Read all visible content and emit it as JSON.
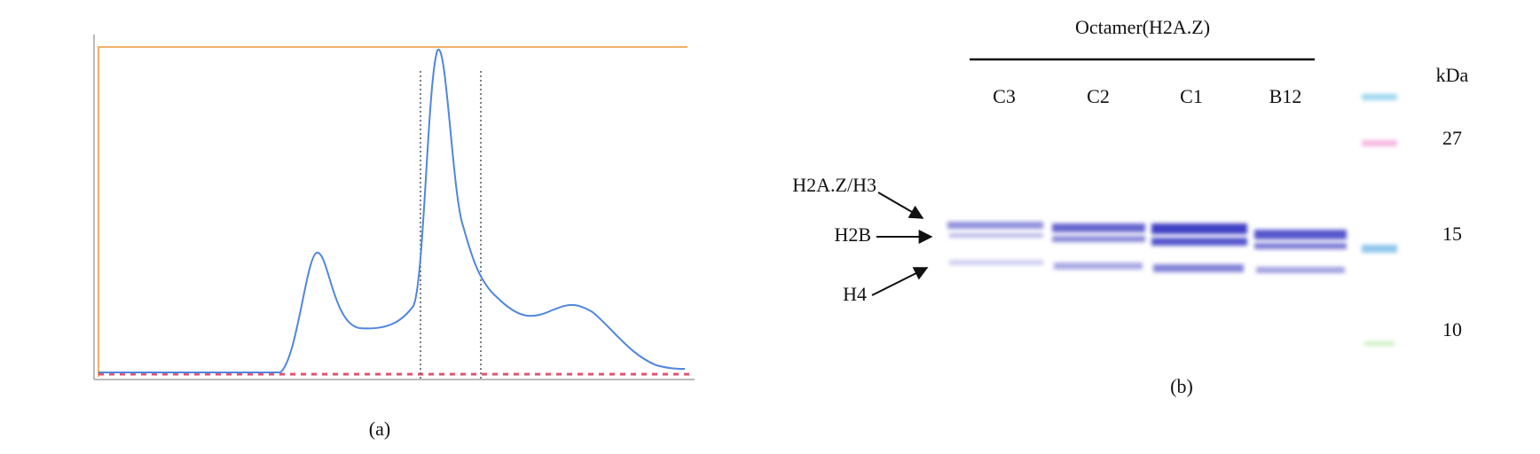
{
  "panel_a": {
    "caption": "(a)"
  },
  "panel_b": {
    "caption": "(b)",
    "title": "Octamer(H2A.Z)",
    "lanes": [
      "C3",
      "C2",
      "C1",
      "B12"
    ],
    "marker_unit": "kDa",
    "marker_sizes": [
      "27",
      "15",
      "10"
    ],
    "band_labels": [
      "H2A.Z/H3",
      "H2B",
      "H4"
    ]
  }
}
